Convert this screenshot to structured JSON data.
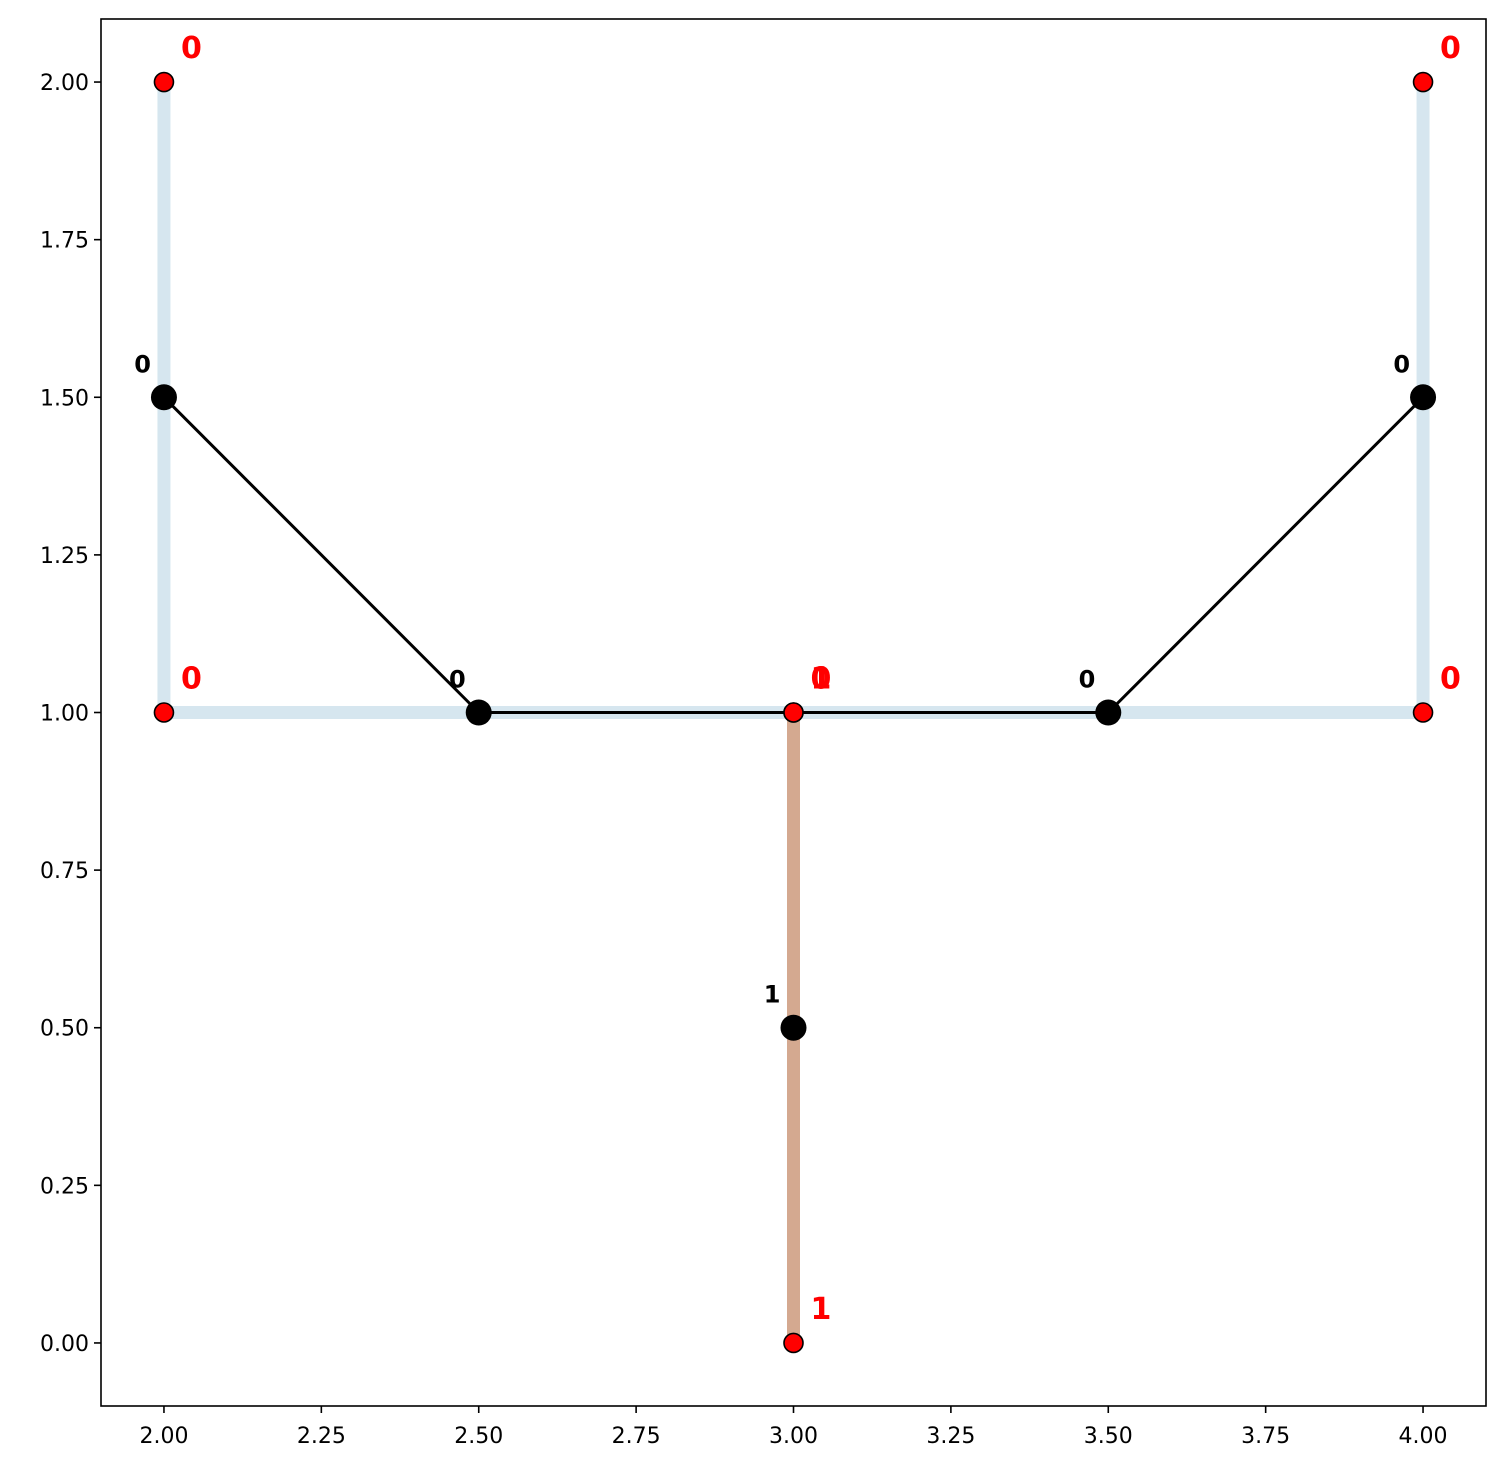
{
  "chart_data": {
    "type": "scatter",
    "title": "",
    "xlabel": "",
    "ylabel": "",
    "xlim": [
      1.9,
      4.1
    ],
    "ylim": [
      -0.1,
      2.1
    ],
    "grid": false,
    "x_ticks": [
      "2.00",
      "2.25",
      "2.50",
      "2.75",
      "3.00",
      "3.25",
      "3.50",
      "3.75",
      "4.00"
    ],
    "y_ticks": [
      "0.00",
      "0.25",
      "0.50",
      "0.75",
      "1.00",
      "1.25",
      "1.50",
      "1.75",
      "2.00"
    ],
    "colors": {
      "group_0_path": "#d6e6ef",
      "group_1_path": "#d4a990",
      "graph_edge": "#000000",
      "input_point": "#ff0000",
      "graph_node": "#000000",
      "input_label": "#ff0000",
      "node_label": "#000000"
    },
    "thick_paths": [
      {
        "group": "0",
        "points": [
          [
            2.0,
            2.0
          ],
          [
            2.0,
            1.0
          ],
          [
            3.0,
            1.0
          ]
        ]
      },
      {
        "group": "0",
        "points": [
          [
            4.0,
            2.0
          ],
          [
            4.0,
            1.0
          ],
          [
            3.0,
            1.0
          ]
        ]
      },
      {
        "group": "1",
        "points": [
          [
            3.0,
            1.0
          ],
          [
            3.0,
            0.0
          ]
        ]
      }
    ],
    "graph_edges": [
      [
        [
          2.0,
          1.5
        ],
        [
          2.5,
          1.0
        ]
      ],
      [
        [
          2.5,
          1.0
        ],
        [
          3.5,
          1.0
        ]
      ],
      [
        [
          3.5,
          1.0
        ],
        [
          4.0,
          1.5
        ]
      ]
    ],
    "input_points": [
      {
        "x": 2.0,
        "y": 2.0,
        "label": "0"
      },
      {
        "x": 2.0,
        "y": 1.0,
        "label": "0"
      },
      {
        "x": 3.0,
        "y": 1.0,
        "label": "0"
      },
      {
        "x": 3.0,
        "y": 1.0,
        "label": "1"
      },
      {
        "x": 4.0,
        "y": 2.0,
        "label": "0"
      },
      {
        "x": 4.0,
        "y": 1.0,
        "label": "0"
      },
      {
        "x": 3.0,
        "y": 0.0,
        "label": "1"
      }
    ],
    "graph_nodes": [
      {
        "x": 2.0,
        "y": 1.5,
        "label": "0"
      },
      {
        "x": 2.5,
        "y": 1.0,
        "label": "0"
      },
      {
        "x": 3.5,
        "y": 1.0,
        "label": "0"
      },
      {
        "x": 4.0,
        "y": 1.5,
        "label": "0"
      },
      {
        "x": 3.0,
        "y": 0.5,
        "label": "1"
      }
    ]
  }
}
